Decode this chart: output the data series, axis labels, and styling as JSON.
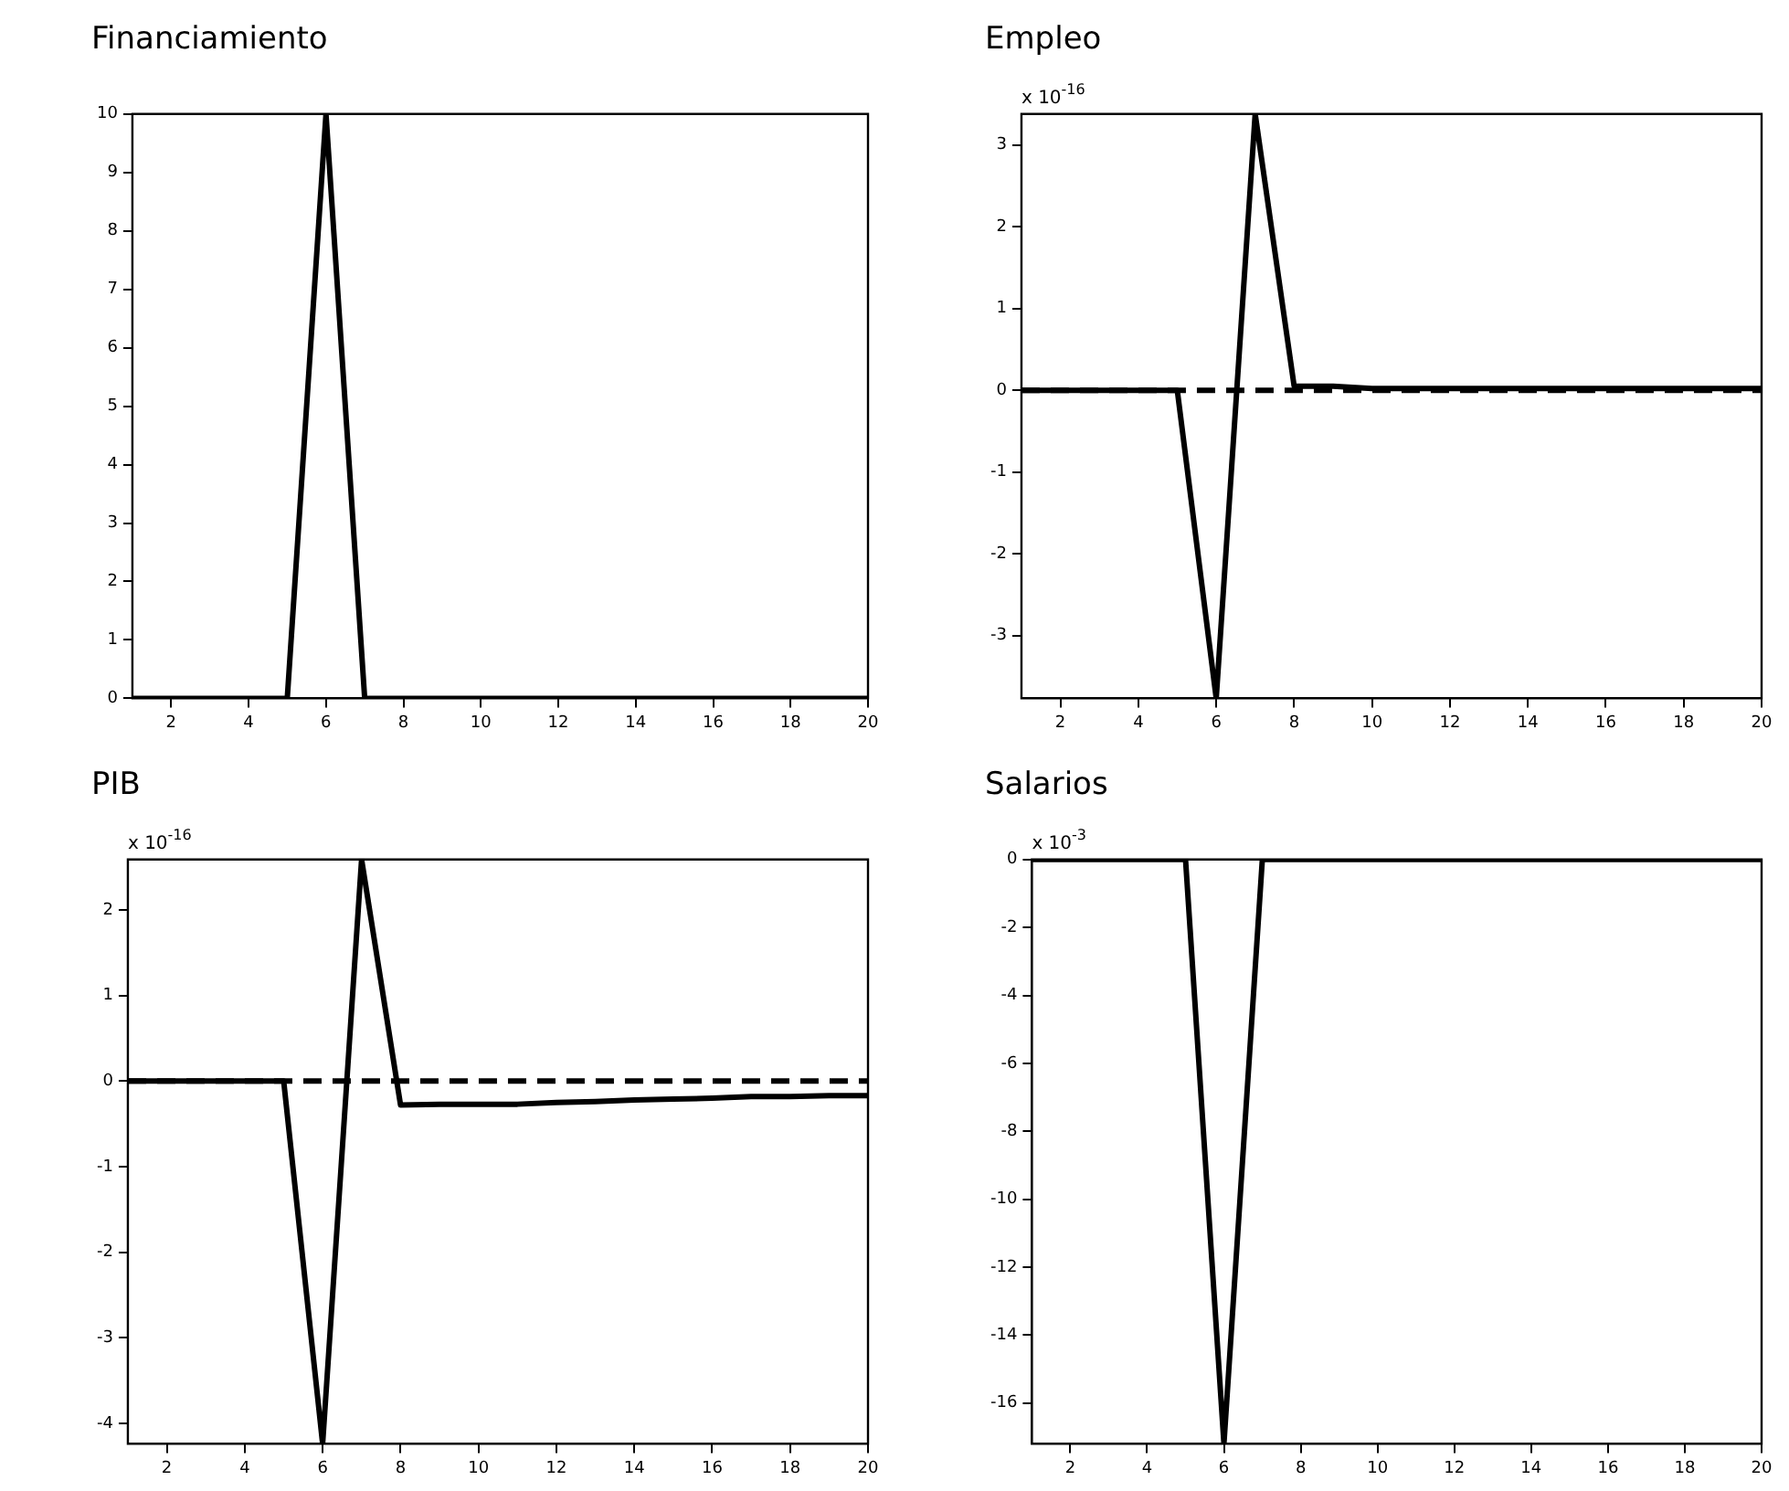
{
  "chart_data": [
    {
      "type": "line",
      "title": "Financiamiento",
      "x": [
        1,
        2,
        3,
        4,
        5,
        6,
        7,
        8,
        9,
        10,
        11,
        12,
        13,
        14,
        15,
        16,
        17,
        18,
        19,
        20
      ],
      "series": [
        {
          "color": "#000000",
          "values": [
            0,
            0,
            0,
            0,
            0,
            10,
            0,
            0,
            0,
            0,
            0,
            0,
            0,
            0,
            0,
            0,
            0,
            0,
            0,
            0
          ]
        }
      ],
      "xlim": [
        1,
        20
      ],
      "xticks": [
        2,
        4,
        6,
        8,
        10,
        12,
        14,
        16,
        18,
        20
      ],
      "ylim": [
        0,
        10
      ],
      "yticks": [
        0,
        1,
        2,
        3,
        4,
        5,
        6,
        7,
        8,
        9,
        10
      ],
      "grid": false,
      "legend": false,
      "marker": "none",
      "line_style": "solid"
    },
    {
      "type": "line",
      "title": "Empleo",
      "annotations": [
        "x 10$^{-16}$"
      ],
      "x": [
        1,
        2,
        3,
        4,
        5,
        6,
        7,
        8,
        9,
        10,
        11,
        12,
        13,
        14,
        15,
        16,
        17,
        18,
        19,
        20
      ],
      "series": [
        {
          "color": "#000000",
          "values": [
            0,
            0,
            0,
            0,
            0,
            -3.77,
            3.38,
            0.05,
            0.05,
            0.02,
            0.02,
            0.02,
            0.02,
            0.02,
            0.02,
            0.02,
            0.02,
            0.02,
            0.02,
            0.02
          ]
        },
        {
          "color": "#000000",
          "line_style": "dashed",
          "values": [
            0,
            0,
            0,
            0,
            0,
            0,
            0,
            0,
            0,
            0,
            0,
            0,
            0,
            0,
            0,
            0,
            0,
            0,
            0,
            0
          ]
        }
      ],
      "xlim": [
        1,
        20
      ],
      "xticks": [
        2,
        4,
        6,
        8,
        10,
        12,
        14,
        16,
        18,
        20
      ],
      "ylim": [
        -3.77,
        3.38
      ],
      "yticks": [
        -3,
        -2,
        -1,
        0,
        1,
        2,
        3
      ],
      "grid": false,
      "legend": false,
      "marker": "none",
      "line_style": "solid"
    },
    {
      "type": "line",
      "title": "PIB",
      "annotations": [
        "x 10$^{-16}$"
      ],
      "x": [
        1,
        2,
        3,
        4,
        5,
        6,
        7,
        8,
        9,
        10,
        11,
        12,
        13,
        14,
        15,
        16,
        17,
        18,
        19,
        20
      ],
      "series": [
        {
          "color": "#000000",
          "values": [
            0,
            0,
            0,
            0,
            0,
            -4.24,
            2.59,
            -0.28,
            -0.27,
            -0.27,
            -0.27,
            -0.25,
            -0.24,
            -0.22,
            -0.21,
            -0.2,
            -0.18,
            -0.18,
            -0.17,
            -0.17
          ]
        },
        {
          "color": "#000000",
          "line_style": "dashed",
          "values": [
            0,
            0,
            0,
            0,
            0,
            0,
            0,
            0,
            0,
            0,
            0,
            0,
            0,
            0,
            0,
            0,
            0,
            0,
            0,
            0
          ]
        }
      ],
      "xlim": [
        1,
        20
      ],
      "xticks": [
        2,
        4,
        6,
        8,
        10,
        12,
        14,
        16,
        18,
        20
      ],
      "ylim": [
        -4.24,
        2.59
      ],
      "yticks": [
        -4,
        -3,
        -2,
        -1,
        0,
        1,
        2
      ],
      "grid": false,
      "legend": false,
      "marker": "none",
      "line_style": "solid"
    },
    {
      "type": "line",
      "title": "Salarios",
      "annotations": [
        "x 10$^{-3}$"
      ],
      "x": [
        1,
        2,
        3,
        4,
        5,
        6,
        7,
        8,
        9,
        10,
        11,
        12,
        13,
        14,
        15,
        16,
        17,
        18,
        19,
        20
      ],
      "series": [
        {
          "color": "#000000",
          "values": [
            0,
            0,
            0,
            0,
            0,
            -17.2,
            0,
            0,
            0,
            0,
            0,
            0,
            0,
            0,
            0,
            0,
            0,
            0,
            0,
            0
          ]
        }
      ],
      "xlim": [
        1,
        20
      ],
      "xticks": [
        2,
        4,
        6,
        8,
        10,
        12,
        14,
        16,
        18,
        20
      ],
      "ylim": [
        -17.2,
        0
      ],
      "yticks": [
        -16,
        -14,
        -12,
        -10,
        -8,
        -6,
        -4,
        -2,
        0
      ],
      "grid": false,
      "legend": false,
      "marker": "none",
      "line_style": "solid"
    }
  ]
}
